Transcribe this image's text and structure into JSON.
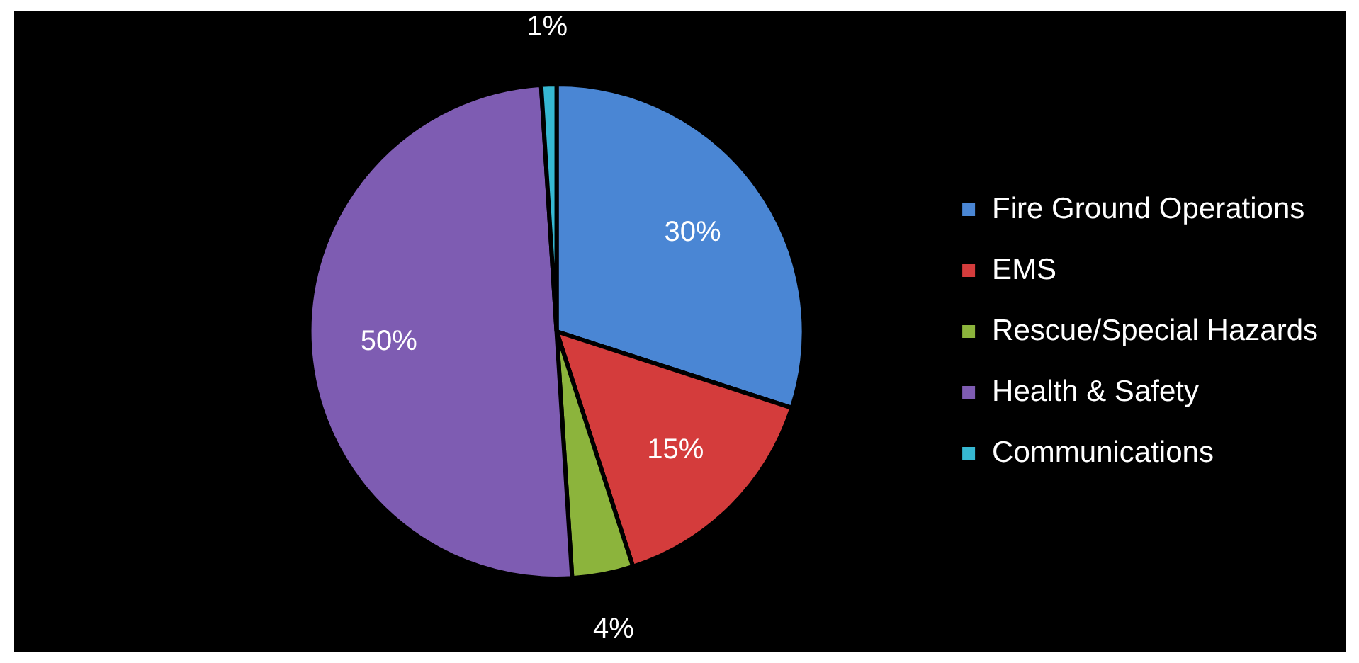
{
  "chart_data": {
    "type": "pie",
    "categories": [
      "Fire Ground Operations",
      "EMS",
      "Rescue/Special Hazards",
      "Health & Safety",
      "Communications"
    ],
    "values": [
      30,
      15,
      4,
      50,
      1
    ],
    "colors": [
      "#4a86d4",
      "#d43c3c",
      "#8cb43c",
      "#7e5cb2",
      "#36b8d2"
    ],
    "value_labels": [
      "30%",
      "15%",
      "4%",
      "50%",
      "1%"
    ],
    "legend": "right"
  }
}
